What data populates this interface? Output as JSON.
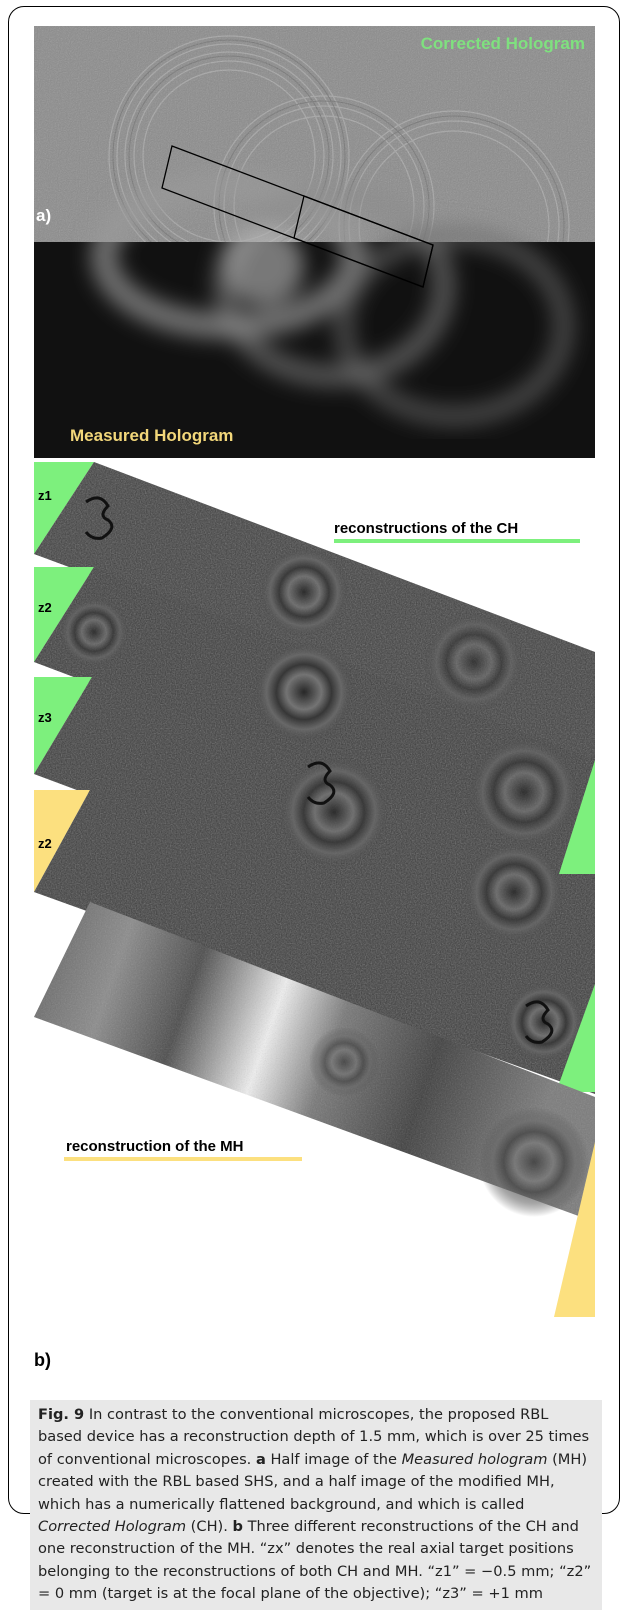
{
  "panel_a": {
    "label": "a)",
    "top_title": "Corrected Hologram",
    "bottom_title": "Measured Hologram",
    "colors": {
      "top_title": "#7fe07f",
      "bottom_title": "#f2d77a"
    }
  },
  "panel_b": {
    "label": "b)",
    "strip_labels": [
      "z1",
      "z2",
      "z3",
      "z2"
    ],
    "ch_text": "reconstructions of the CH",
    "mh_text": "reconstruction of the MH",
    "colors": {
      "ch": "#7df07d",
      "mh": "#fce07f"
    }
  },
  "caption": {
    "fig": "Fig. 9",
    "s1": " In contrast to the conventional microscopes, the proposed RBL based device has a reconstruction depth of 1.5 mm, which is over 25 times of conventional microscopes. ",
    "a": "a",
    "s2": " Half image of the ",
    "mh_i": "Measured hologram",
    "s3": " (MH) created with the RBL based SHS, and a half image of the modified MH, which has a numerically flattened background, and which is called ",
    "ch_i": "Corrected Hologram",
    "s4": " (CH). ",
    "b": "b",
    "s5": " Three different reconstructions of the CH and one reconstruction of the MH. “zx” denotes the real axial target positions belonging to the reconstructions of both CH and MH. “z1” = −0.5 mm; “z2” = 0 mm (target is at the focal plane of the objective); “z3” = +1 mm"
  }
}
